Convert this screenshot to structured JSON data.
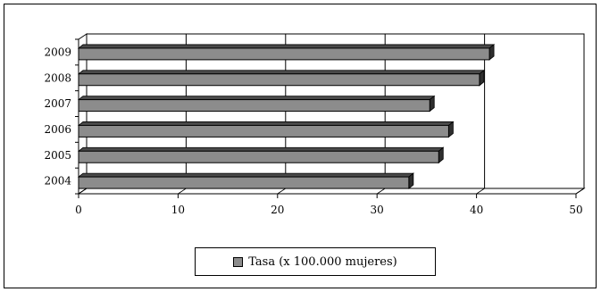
{
  "chart_data": {
    "type": "bar",
    "orientation": "horizontal",
    "categories": [
      "2004",
      "2005",
      "2006",
      "2007",
      "2008",
      "2009"
    ],
    "series": [
      {
        "name": "Tasa (x 100.000 mujeres)",
        "values": [
          33.2,
          36.2,
          37.2,
          35.3,
          40.3,
          41.3
        ]
      }
    ],
    "xlim": [
      0,
      50
    ],
    "xticks": [
      "0",
      "10",
      "20",
      "30",
      "40",
      "50"
    ],
    "grid": "vertical",
    "legend": "bottom",
    "bar_color": "#8c8c8c",
    "title": "",
    "xlabel": "",
    "ylabel": ""
  },
  "legend": {
    "label": "Tasa (x 100.000 mujeres)"
  }
}
